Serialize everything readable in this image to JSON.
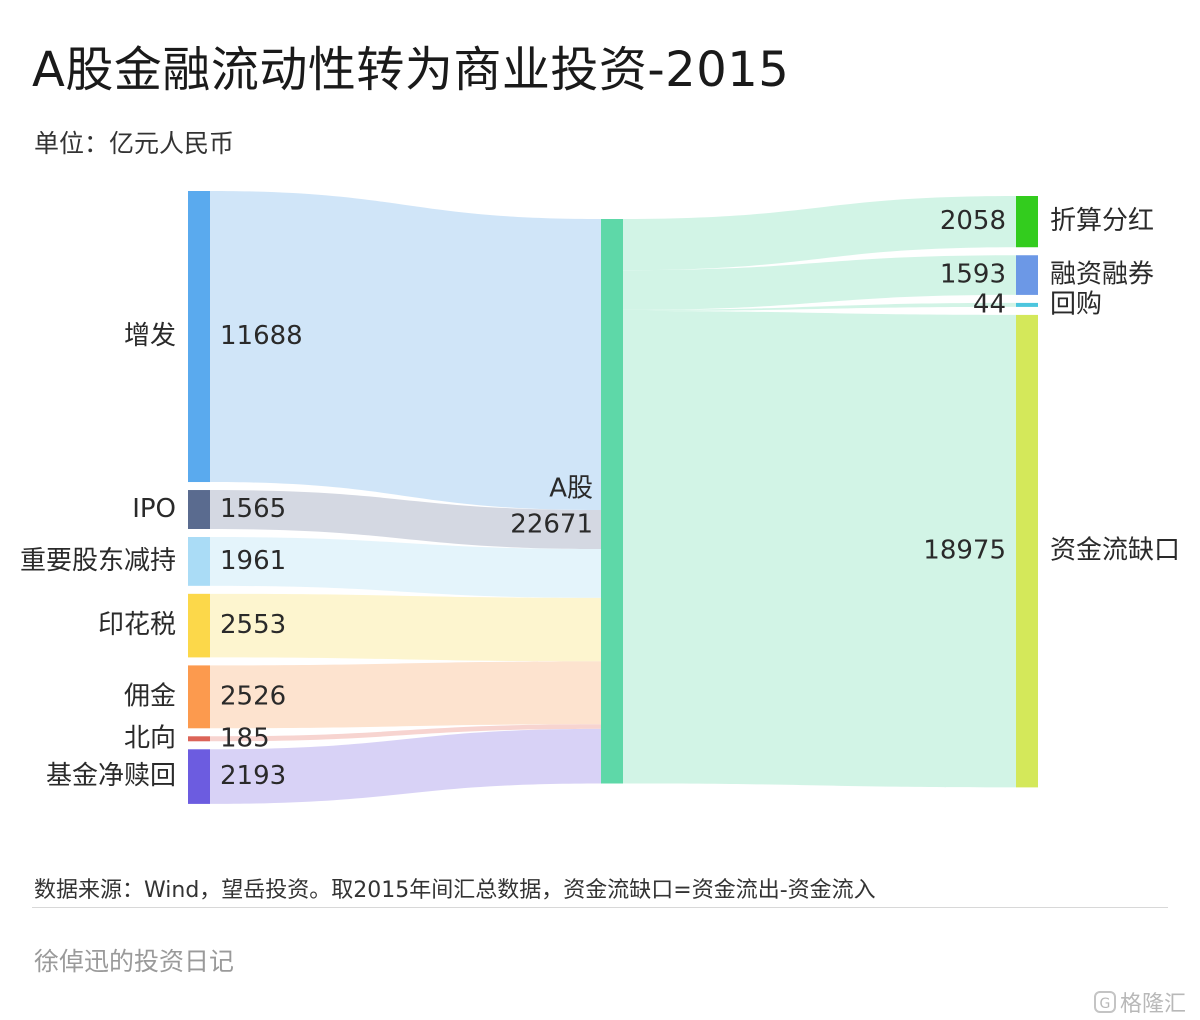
{
  "title": "A股金融流动性转为商业投资-2015",
  "unit": "单位：亿元人民币",
  "source": "数据来源：Wind，望岳投资。取2015年间汇总数据，资金流缺口=资金流出-资金流入",
  "author": "徐倬迅的投资日记",
  "watermark": "格隆汇",
  "chart_data": {
    "type": "sankey",
    "sources": [
      {
        "name": "增发",
        "value": 11688,
        "color": "#5aaaee",
        "link_color": "#cde4f8"
      },
      {
        "name": "IPO",
        "value": 1565,
        "color": "#5a6b8f",
        "link_color": "#d2d6e0"
      },
      {
        "name": "重要股东减持",
        "value": 1961,
        "color": "#aadcf6",
        "link_color": "#e3f3fb"
      },
      {
        "name": "印花税",
        "value": 2553,
        "color": "#fcd84a",
        "link_color": "#fdf4cc"
      },
      {
        "name": "佣金",
        "value": 2526,
        "color": "#fc9a4e",
        "link_color": "#fde1cc"
      },
      {
        "name": "北向",
        "value": 185,
        "color": "#dc6458",
        "link_color": "#f7d2ce"
      },
      {
        "name": "基金净赎回",
        "value": 2193,
        "color": "#6c5ce0",
        "link_color": "#d6d0f6"
      }
    ],
    "center": {
      "name": "A股",
      "value": 22671,
      "color": "#5ed8a8",
      "link_color": "#d0f3e5"
    },
    "targets": [
      {
        "name": "折算分红",
        "value": 2058,
        "color": "#33cc1e"
      },
      {
        "name": "融资融券",
        "value": 1593,
        "color": "#6c98e6"
      },
      {
        "name": "回购",
        "value": 44,
        "color": "#4cc6de"
      },
      {
        "name": "资金流缺口",
        "value": 18975,
        "color": "#d4e85a"
      }
    ]
  }
}
